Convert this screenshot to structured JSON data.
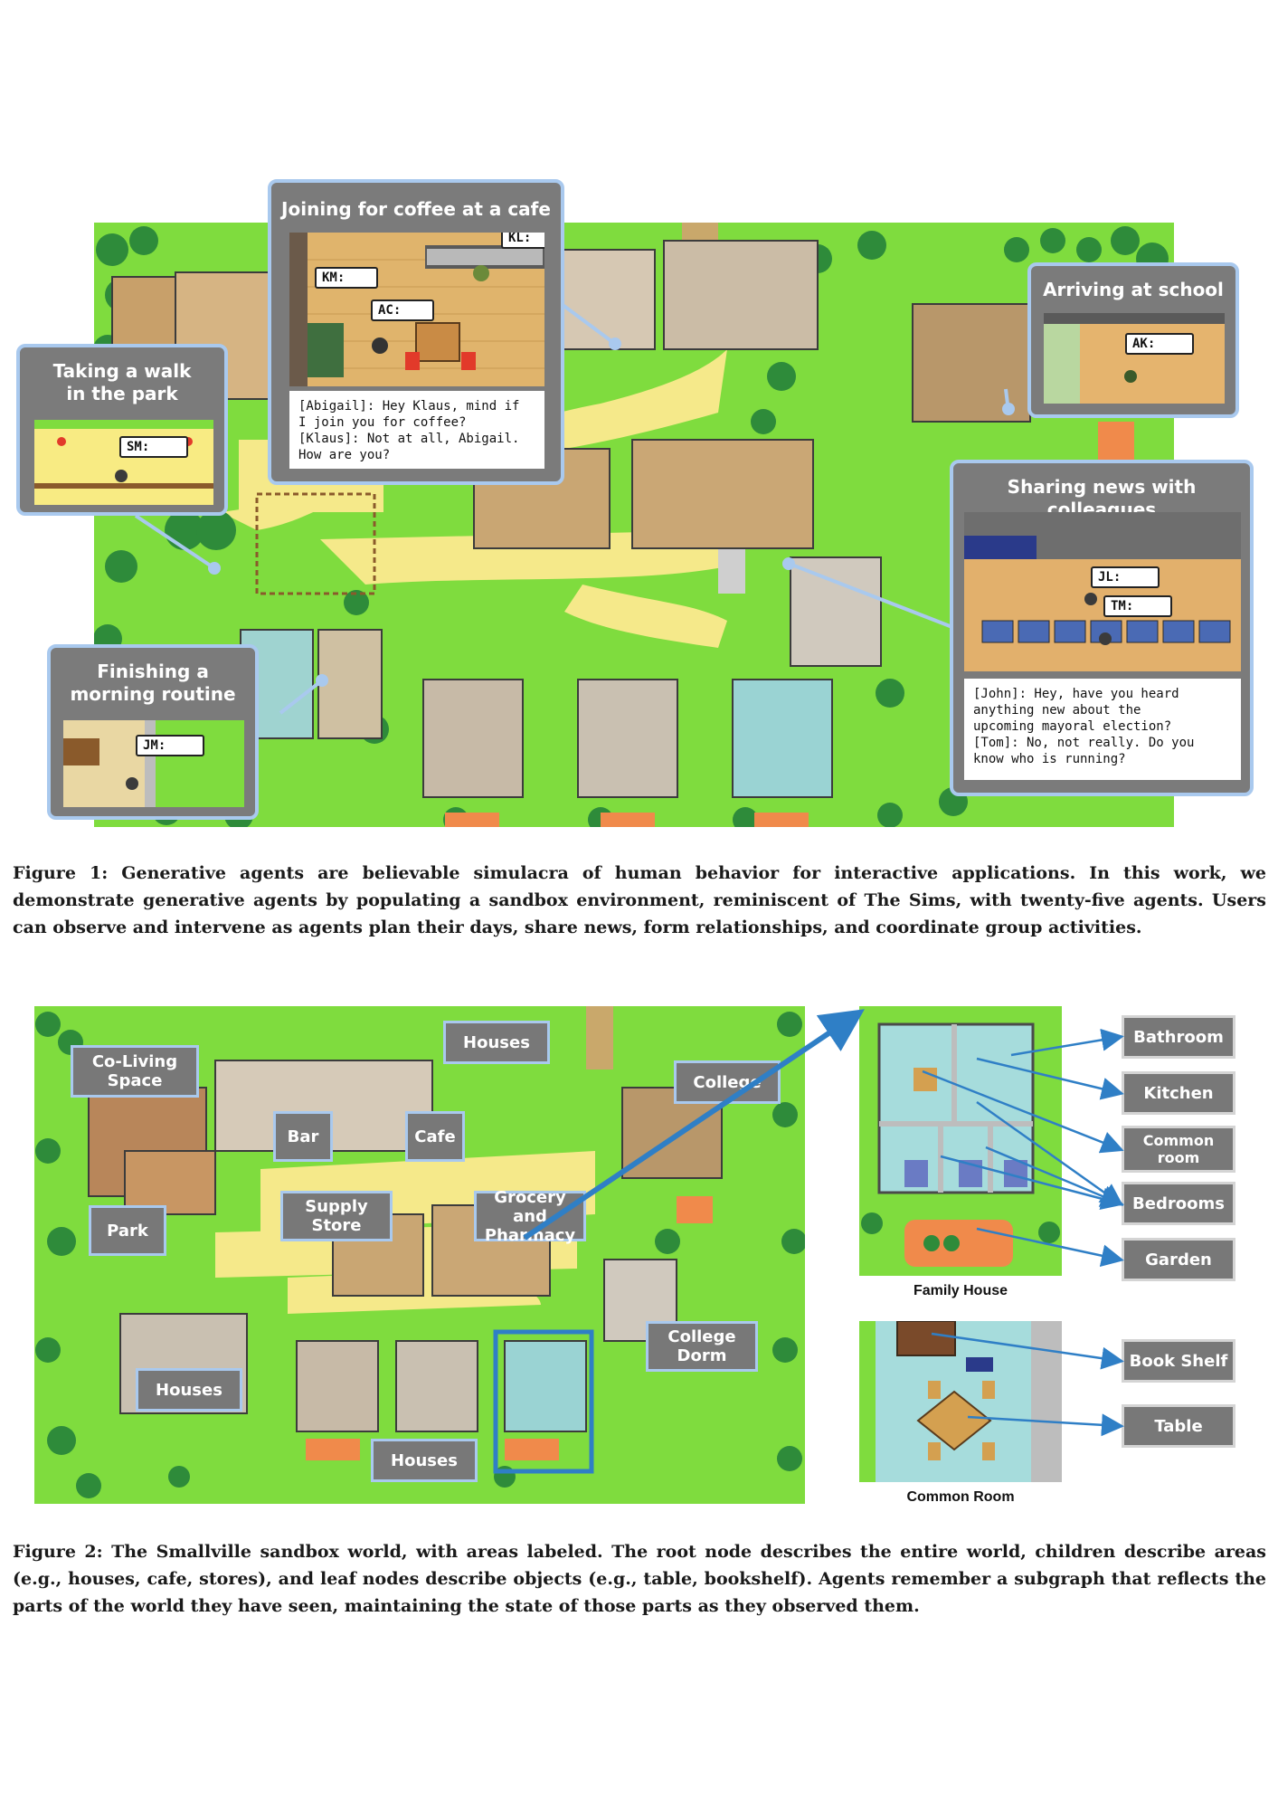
{
  "figure1": {
    "callouts": {
      "cafe": {
        "title": "Joining for coffee at a cafe",
        "bubbles": [
          "KM:",
          "AC:",
          "KL:"
        ],
        "dialogue": [
          "[Abigail]: Hey Klaus, mind if",
          "I join you for coffee?",
          "[Klaus]: Not at all, Abigail.",
          "How are you?"
        ]
      },
      "park": {
        "title_line1": "Taking a walk",
        "title_line2": "in the park",
        "bubble": "SM:"
      },
      "school": {
        "title": "Arriving at school",
        "bubble": "AK:"
      },
      "colleagues": {
        "title": "Sharing news with colleagues",
        "bubbles": [
          "JL:",
          "TM:"
        ],
        "dialogue": [
          "[John]: Hey, have you heard",
          "anything new about the",
          "upcoming mayoral election?",
          "[Tom]: No, not really. Do you",
          "know who is running?"
        ]
      },
      "morning": {
        "title_line1": "Finishing a",
        "title_line2": "morning routine",
        "bubble": "JM:"
      }
    },
    "caption": "Figure 1: Generative agents are believable simulacra of human behavior for interactive applications. In this work, we demonstrate generative agents by populating a sandbox environment, reminiscent of The Sims, with twenty-five agents. Users can observe and intervene as agents plan their days, share news, form relationships, and coordinate group activities."
  },
  "figure2": {
    "areas": {
      "co_living": "Co-Living Space",
      "houses_top": "Houses",
      "college": "College",
      "bar": "Bar",
      "cafe": "Cafe",
      "supply_store": "Supply Store",
      "grocery": "Grocery and Pharmacy",
      "park": "Park",
      "college_dorm": "College Dorm",
      "houses_left": "Houses",
      "houses_bottom": "Houses"
    },
    "family_house": {
      "caption": "Family House",
      "labels": [
        "Bathroom",
        "Kitchen",
        "Common room",
        "Bedrooms",
        "Garden"
      ]
    },
    "common_room": {
      "caption": "Common Room",
      "labels": [
        "Book Shelf",
        "Table"
      ]
    },
    "caption": "Figure 2: The Smallville sandbox world, with areas labeled. The root node describes the entire world, children describe areas (e.g., houses, cafe, stores), and leaf nodes describe objects (e.g., table, bookshelf). Agents remember a subgraph that reflects the parts of the world they have seen, maintaining the state of those parts as they observed them."
  },
  "colors": {
    "grass": "#7fdc3e",
    "tree": "#2e8b3a",
    "path": "#f5e98a",
    "callout_border": "#a9c9ee",
    "arrow": "#2f7fc6",
    "label_bg": "#787878"
  }
}
